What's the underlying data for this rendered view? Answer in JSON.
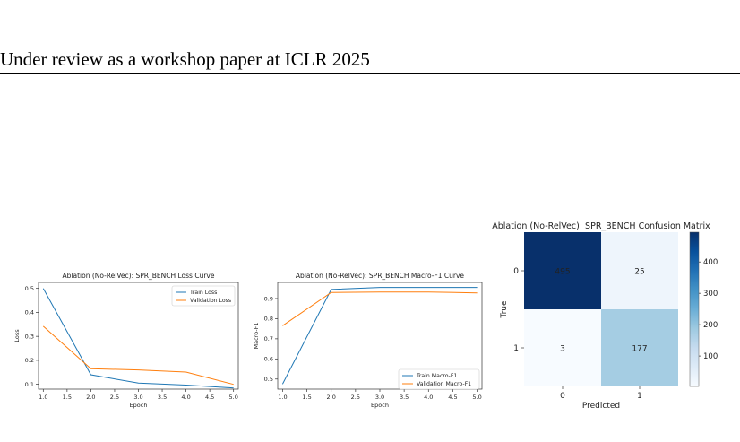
{
  "header": {
    "text": "Under review as a workshop paper at ICLR 2025"
  },
  "colors": {
    "train": "#1f77b4",
    "validation": "#ff7f0e"
  },
  "charts": [
    {
      "type": "line",
      "title": "Ablation (No-RelVec): SPR_BENCH Loss Curve",
      "xlabel": "Epoch",
      "ylabel": "Loss",
      "xlim": [
        0.9,
        5.1
      ],
      "ylim": [
        0.08,
        0.525
      ],
      "xticks": [
        1.0,
        1.5,
        2.0,
        2.5,
        3.0,
        3.5,
        4.0,
        4.5,
        5.0
      ],
      "yticks": [
        0.1,
        0.2,
        0.3,
        0.4,
        0.5
      ],
      "x": [
        1,
        2,
        3,
        4,
        5
      ],
      "series": [
        {
          "name": "Train Loss",
          "values": [
            0.5,
            0.14,
            0.105,
            0.097,
            0.085
          ]
        },
        {
          "name": "Validation Loss",
          "values": [
            0.342,
            0.165,
            0.16,
            0.151,
            0.1
          ]
        }
      ],
      "legend": "top-right"
    },
    {
      "type": "line",
      "title": "Ablation (No-RelVec): SPR_BENCH Macro-F1 Curve",
      "xlabel": "Epoch",
      "ylabel": "Macro-F1",
      "xlim": [
        0.9,
        5.1
      ],
      "ylim": [
        0.45,
        0.98
      ],
      "xticks": [
        1.0,
        1.5,
        2.0,
        2.5,
        3.0,
        3.5,
        4.0,
        4.5,
        5.0
      ],
      "yticks": [
        0.5,
        0.6,
        0.7,
        0.8,
        0.9
      ],
      "x": [
        1,
        2,
        3,
        4,
        5
      ],
      "series": [
        {
          "name": "Train Macro-F1",
          "values": [
            0.475,
            0.945,
            0.955,
            0.955,
            0.955
          ]
        },
        {
          "name": "Validation Macro-F1",
          "values": [
            0.765,
            0.93,
            0.932,
            0.932,
            0.928
          ]
        }
      ],
      "legend": "bottom-right"
    },
    {
      "type": "heatmap",
      "title": "Ablation (No-RelVec): SPR_BENCH Confusion Matrix",
      "xlabel": "Predicted",
      "ylabel": "True",
      "xticks": [
        "0",
        "1"
      ],
      "yticks": [
        "0",
        "1"
      ],
      "values": [
        [
          495,
          25
        ],
        [
          3,
          177
        ]
      ],
      "colorbar_ticks": [
        100,
        200,
        300,
        400
      ],
      "colorbar_range": [
        3,
        495
      ]
    }
  ]
}
